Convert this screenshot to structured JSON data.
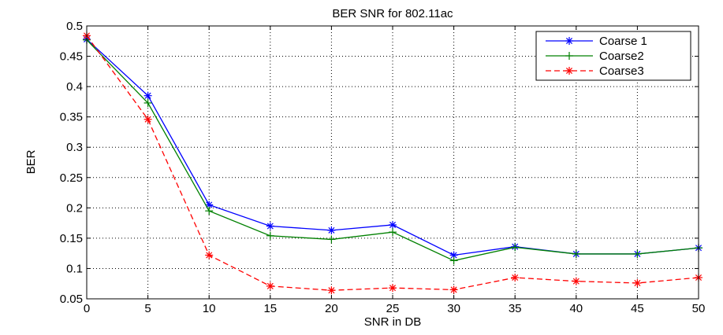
{
  "chart_data": {
    "type": "line",
    "title": "BER SNR for 802.11ac",
    "xlabel": "SNR in DB",
    "ylabel": "BER",
    "x": [
      0,
      5,
      10,
      15,
      20,
      25,
      30,
      35,
      40,
      45,
      50
    ],
    "xlim": [
      0,
      50
    ],
    "ylim": [
      0.05,
      0.5
    ],
    "xticks": [
      0,
      5,
      10,
      15,
      20,
      25,
      30,
      35,
      40,
      45,
      50
    ],
    "yticks": [
      0.05,
      0.1,
      0.15,
      0.2,
      0.25,
      0.3,
      0.35,
      0.4,
      0.45,
      0.5
    ],
    "grid": true,
    "legend_position": "top-right",
    "series": [
      {
        "name": "Coarse 1",
        "values": [
          0.478,
          0.385,
          0.205,
          0.17,
          0.163,
          0.172,
          0.122,
          0.136,
          0.124,
          0.124,
          0.134
        ],
        "color": "#0000ff",
        "marker": "asterisk",
        "linestyle": "solid"
      },
      {
        "name": "Coarse2",
        "values": [
          0.477,
          0.373,
          0.195,
          0.154,
          0.148,
          0.16,
          0.113,
          0.135,
          0.124,
          0.124,
          0.134
        ],
        "color": "#008000",
        "marker": "plus",
        "linestyle": "solid"
      },
      {
        "name": "Coarse3",
        "values": [
          0.484,
          0.346,
          0.122,
          0.071,
          0.064,
          0.068,
          0.065,
          0.085,
          0.079,
          0.076,
          0.085
        ],
        "color": "#ff0000",
        "marker": "asterisk",
        "linestyle": "dashed"
      }
    ]
  }
}
